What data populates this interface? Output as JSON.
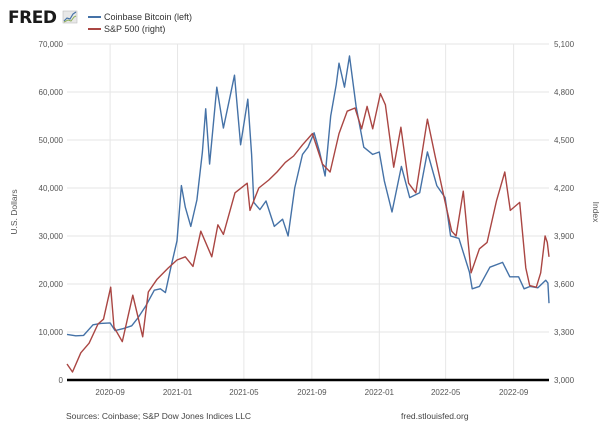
{
  "brand": {
    "logo": "FRED"
  },
  "footer": {
    "sources": "Sources: Coinbase; S&P Dow Jones Indices LLC",
    "site": "fred.stlouisfed.org"
  },
  "colors": {
    "bitcoin": "#4572a7",
    "sp500": "#aa4643",
    "grid": "#e6e6e6",
    "axis": "#000000"
  },
  "chart_data": {
    "type": "line",
    "title": "",
    "legend_placement": "top-left",
    "grid": true,
    "x_range": [
      "2020-06-15",
      "2022-11-04"
    ],
    "x_ticks": [
      "2020-09",
      "2021-01",
      "2021-05",
      "2021-09",
      "2022-01",
      "2022-05",
      "2022-09"
    ],
    "y_left": {
      "label": "U.S. Dollars",
      "range": [
        0,
        70000
      ],
      "ticks": [
        "0",
        "10,000",
        "20,000",
        "30,000",
        "40,000",
        "50,000",
        "60,000",
        "70,000"
      ]
    },
    "y_right": {
      "label": "Index",
      "range": [
        3000,
        5100
      ],
      "ticks": [
        "3,000",
        "3,300",
        "3,600",
        "3,900",
        "4,200",
        "4,500",
        "4,800",
        "5,100"
      ]
    },
    "series": [
      {
        "name": "Coinbase Bitcoin (left)",
        "axis": "left",
        "color": "#4572a7",
        "points": [
          [
            "2020-06-15",
            9500
          ],
          [
            "2020-07-01",
            9200
          ],
          [
            "2020-07-15",
            9300
          ],
          [
            "2020-08-01",
            11500
          ],
          [
            "2020-08-15",
            11800
          ],
          [
            "2020-09-01",
            11900
          ],
          [
            "2020-09-10",
            10300
          ],
          [
            "2020-09-25",
            10700
          ],
          [
            "2020-10-10",
            11300
          ],
          [
            "2020-10-21",
            12900
          ],
          [
            "2020-11-05",
            15500
          ],
          [
            "2020-11-20",
            18700
          ],
          [
            "2020-12-01",
            19000
          ],
          [
            "2020-12-10",
            18200
          ],
          [
            "2020-12-20",
            23500
          ],
          [
            "2020-12-31",
            29000
          ],
          [
            "2021-01-08",
            40500
          ],
          [
            "2021-01-15",
            36000
          ],
          [
            "2021-01-25",
            32000
          ],
          [
            "2021-02-05",
            37500
          ],
          [
            "2021-02-15",
            47500
          ],
          [
            "2021-02-21",
            56500
          ],
          [
            "2021-02-28",
            45000
          ],
          [
            "2021-03-13",
            61000
          ],
          [
            "2021-03-25",
            52500
          ],
          [
            "2021-04-05",
            58500
          ],
          [
            "2021-04-14",
            63500
          ],
          [
            "2021-04-25",
            49000
          ],
          [
            "2021-05-08",
            58500
          ],
          [
            "2021-05-15",
            47000
          ],
          [
            "2021-05-19",
            37000
          ],
          [
            "2021-05-30",
            35500
          ],
          [
            "2021-06-10",
            37300
          ],
          [
            "2021-06-25",
            32000
          ],
          [
            "2021-07-10",
            33500
          ],
          [
            "2021-07-20",
            30000
          ],
          [
            "2021-08-01",
            40000
          ],
          [
            "2021-08-15",
            47000
          ],
          [
            "2021-08-25",
            48500
          ],
          [
            "2021-09-05",
            51500
          ],
          [
            "2021-09-15",
            47500
          ],
          [
            "2021-09-25",
            42500
          ],
          [
            "2021-10-05",
            55000
          ],
          [
            "2021-10-15",
            61500
          ],
          [
            "2021-10-20",
            66000
          ],
          [
            "2021-10-30",
            61000
          ],
          [
            "2021-11-08",
            67500
          ],
          [
            "2021-11-20",
            57000
          ],
          [
            "2021-12-04",
            48500
          ],
          [
            "2021-12-20",
            47000
          ],
          [
            "2022-01-01",
            47500
          ],
          [
            "2022-01-10",
            41500
          ],
          [
            "2022-01-24",
            35000
          ],
          [
            "2022-02-10",
            44500
          ],
          [
            "2022-02-25",
            38000
          ],
          [
            "2022-03-15",
            39000
          ],
          [
            "2022-03-29",
            47500
          ],
          [
            "2022-04-15",
            40500
          ],
          [
            "2022-04-30",
            38000
          ],
          [
            "2022-05-10",
            30000
          ],
          [
            "2022-05-25",
            29500
          ],
          [
            "2022-06-13",
            22500
          ],
          [
            "2022-06-18",
            19000
          ],
          [
            "2022-07-01",
            19500
          ],
          [
            "2022-07-20",
            23500
          ],
          [
            "2022-08-12",
            24500
          ],
          [
            "2022-08-25",
            21500
          ],
          [
            "2022-09-10",
            21500
          ],
          [
            "2022-09-20",
            19000
          ],
          [
            "2022-10-01",
            19500
          ],
          [
            "2022-10-15",
            19200
          ],
          [
            "2022-10-29",
            20800
          ],
          [
            "2022-11-02",
            20200
          ],
          [
            "2022-11-04",
            16000
          ]
        ]
      },
      {
        "name": "S&P 500 (right)",
        "axis": "right",
        "color": "#aa4643",
        "points": [
          [
            "2020-06-15",
            3100
          ],
          [
            "2020-06-25",
            3050
          ],
          [
            "2020-07-10",
            3170
          ],
          [
            "2020-07-25",
            3230
          ],
          [
            "2020-08-10",
            3350
          ],
          [
            "2020-08-20",
            3380
          ],
          [
            "2020-09-02",
            3580
          ],
          [
            "2020-09-08",
            3330
          ],
          [
            "2020-09-23",
            3240
          ],
          [
            "2020-10-12",
            3530
          ],
          [
            "2020-10-30",
            3270
          ],
          [
            "2020-11-09",
            3550
          ],
          [
            "2020-11-25",
            3630
          ],
          [
            "2020-12-15",
            3700
          ],
          [
            "2020-12-31",
            3750
          ],
          [
            "2021-01-15",
            3770
          ],
          [
            "2021-01-29",
            3710
          ],
          [
            "2021-02-12",
            3930
          ],
          [
            "2021-03-04",
            3770
          ],
          [
            "2021-03-15",
            3970
          ],
          [
            "2021-03-25",
            3910
          ],
          [
            "2021-04-15",
            4170
          ],
          [
            "2021-05-07",
            4230
          ],
          [
            "2021-05-12",
            4060
          ],
          [
            "2021-05-28",
            4200
          ],
          [
            "2021-06-15",
            4250
          ],
          [
            "2021-06-30",
            4300
          ],
          [
            "2021-07-15",
            4360
          ],
          [
            "2021-07-30",
            4400
          ],
          [
            "2021-08-15",
            4470
          ],
          [
            "2021-09-02",
            4540
          ],
          [
            "2021-09-20",
            4350
          ],
          [
            "2021-10-04",
            4300
          ],
          [
            "2021-10-20",
            4540
          ],
          [
            "2021-11-04",
            4680
          ],
          [
            "2021-11-18",
            4700
          ],
          [
            "2021-11-30",
            4570
          ],
          [
            "2021-12-10",
            4710
          ],
          [
            "2021-12-20",
            4570
          ],
          [
            "2022-01-03",
            4790
          ],
          [
            "2022-01-12",
            4720
          ],
          [
            "2022-01-27",
            4330
          ],
          [
            "2022-02-09",
            4580
          ],
          [
            "2022-02-23",
            4230
          ],
          [
            "2022-03-08",
            4170
          ],
          [
            "2022-03-29",
            4630
          ],
          [
            "2022-04-12",
            4400
          ],
          [
            "2022-04-29",
            4130
          ],
          [
            "2022-05-12",
            3930
          ],
          [
            "2022-05-20",
            3900
          ],
          [
            "2022-06-02",
            4180
          ],
          [
            "2022-06-16",
            3670
          ],
          [
            "2022-07-01",
            3820
          ],
          [
            "2022-07-15",
            3860
          ],
          [
            "2022-08-01",
            4120
          ],
          [
            "2022-08-16",
            4300
          ],
          [
            "2022-08-26",
            4060
          ],
          [
            "2022-09-12",
            4110
          ],
          [
            "2022-09-23",
            3700
          ],
          [
            "2022-09-30",
            3590
          ],
          [
            "2022-10-12",
            3580
          ],
          [
            "2022-10-20",
            3670
          ],
          [
            "2022-10-28",
            3900
          ],
          [
            "2022-11-01",
            3860
          ],
          [
            "2022-11-04",
            3770
          ]
        ]
      }
    ]
  }
}
